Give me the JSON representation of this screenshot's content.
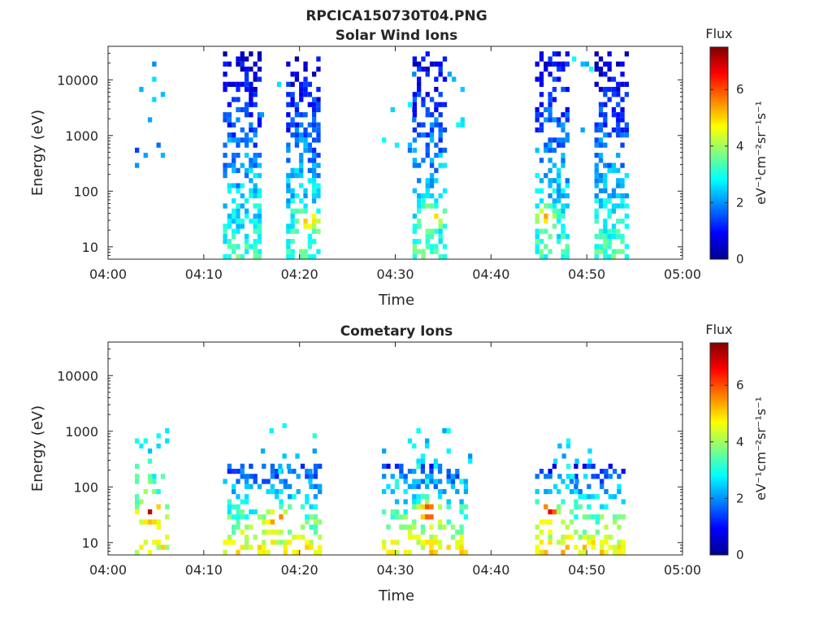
{
  "figure": {
    "title": "RPCICA150730T04.PNG"
  },
  "colormap": [
    "#00008f",
    "#0000ff",
    "#0080ff",
    "#00ffff",
    "#80ff80",
    "#ffff00",
    "#ff8000",
    "#ff0000",
    "#800000"
  ],
  "chart_data": [
    {
      "type": "heatmap",
      "title": "Solar Wind Ions",
      "xlabel": "Time",
      "ylabel": "Energy (eV)",
      "xlim": [
        "04:00",
        "05:00"
      ],
      "xticks": [
        "04:00",
        "04:10",
        "04:20",
        "04:30",
        "04:40",
        "04:50",
        "05:00"
      ],
      "ylim": [
        6,
        40000
      ],
      "yscale": "log",
      "yticks": [
        "10",
        "100",
        "1000",
        "10000"
      ],
      "colorbar": {
        "title": "Flux",
        "range": [
          0,
          7.5
        ],
        "ticks": [
          "0",
          "2",
          "4",
          "6"
        ],
        "label": "eV⁻¹cm⁻²sr⁻¹s⁻¹"
      },
      "bursts": [
        {
          "start_min": 2.8,
          "end_min": 5.8,
          "emin_ev": 280,
          "emax_ev": 22000,
          "density": 0.12,
          "low_flux": 1.8,
          "high_flux": 2.2,
          "hot_min": null,
          "hot_ev": null,
          "hot_flux": null
        },
        {
          "start_min": 12.0,
          "end_min": 16.0,
          "emin_ev": 6,
          "emax_ev": 35000,
          "density": 0.55,
          "low_flux": 3.3,
          "high_flux": 0.5,
          "hot_min": null,
          "hot_ev": null,
          "hot_flux": null
        },
        {
          "start_min": 18.6,
          "end_min": 22.0,
          "emin_ev": 6,
          "emax_ev": 25000,
          "density": 0.6,
          "low_flux": 3.4,
          "high_flux": 0.5,
          "hot_min": 20.8,
          "hot_ev": 30,
          "hot_flux": 5.5
        },
        {
          "start_min": 14.5,
          "end_min": 19.0,
          "emin_ev": 2000,
          "emax_ev": 12000,
          "density": 0.08,
          "low_flux": 2.0,
          "high_flux": 2.5,
          "hot_min": null,
          "hot_ev": null,
          "hot_flux": null
        },
        {
          "start_min": 28.6,
          "end_min": 31.8,
          "emin_ev": 500,
          "emax_ev": 20000,
          "density": 0.1,
          "low_flux": 2.2,
          "high_flux": 2.5,
          "hot_min": null,
          "hot_ev": null,
          "hot_flux": null
        },
        {
          "start_min": 31.8,
          "end_min": 35.2,
          "emin_ev": 6,
          "emax_ev": 35000,
          "density": 0.55,
          "low_flux": 3.3,
          "high_flux": 0.6,
          "hot_min": 33.5,
          "hot_ev": 33,
          "hot_flux": 5.8
        },
        {
          "start_min": 35.0,
          "end_min": 37.8,
          "emin_ev": 1200,
          "emax_ev": 15000,
          "density": 0.1,
          "low_flux": 2.3,
          "high_flux": 2.6,
          "hot_min": null,
          "hot_ev": null,
          "hot_flux": null
        },
        {
          "start_min": 44.6,
          "end_min": 48.0,
          "emin_ev": 6,
          "emax_ev": 35000,
          "density": 0.55,
          "low_flux": 3.3,
          "high_flux": 0.6,
          "hot_min": 45.6,
          "hot_ev": 35,
          "hot_flux": 5.4
        },
        {
          "start_min": 48.0,
          "end_min": 50.8,
          "emin_ev": 800,
          "emax_ev": 30000,
          "density": 0.08,
          "low_flux": 2.3,
          "high_flux": 2.4,
          "hot_min": null,
          "hot_ev": null,
          "hot_flux": null
        },
        {
          "start_min": 50.8,
          "end_min": 54.0,
          "emin_ev": 6,
          "emax_ev": 30000,
          "density": 0.6,
          "low_flux": 3.4,
          "high_flux": 0.5,
          "hot_min": null,
          "hot_ev": null,
          "hot_flux": null
        }
      ]
    },
    {
      "type": "heatmap",
      "title": "Cometary Ions",
      "xlabel": "Time",
      "ylabel": "Energy (eV)",
      "xlim": [
        "04:00",
        "05:00"
      ],
      "xticks": [
        "04:00",
        "04:10",
        "04:20",
        "04:30",
        "04:40",
        "04:50",
        "05:00"
      ],
      "ylim": [
        6,
        40000
      ],
      "yscale": "log",
      "yticks": [
        "10",
        "100",
        "1000",
        "10000"
      ],
      "colorbar": {
        "title": "Flux",
        "range": [
          0,
          7.5
        ],
        "ticks": [
          "0",
          "2",
          "4",
          "6"
        ],
        "label": "eV⁻¹cm⁻²sr⁻¹s⁻¹"
      },
      "bursts": [
        {
          "start_min": 2.8,
          "end_min": 6.0,
          "emin_ev": 6,
          "emax_ev": 1100,
          "density": 0.4,
          "low_flux": 4.6,
          "high_flux": 2.3,
          "hot_min": 4.2,
          "hot_ev": 35,
          "hot_flux": 7.0
        },
        {
          "start_min": 12.0,
          "end_min": 22.0,
          "emin_ev": 6,
          "emax_ev": 250,
          "density": 0.4,
          "low_flux": 4.8,
          "high_flux": 1.3,
          "hot_min": 17.5,
          "hot_ev": 25,
          "hot_flux": 6.3
        },
        {
          "start_min": 15.5,
          "end_min": 21.5,
          "emin_ev": 120,
          "emax_ev": 1500,
          "density": 0.1,
          "low_flux": 2.6,
          "high_flux": 2.6,
          "hot_min": null,
          "hot_ev": null,
          "hot_flux": null
        },
        {
          "start_min": 28.6,
          "end_min": 37.5,
          "emin_ev": 6,
          "emax_ev": 250,
          "density": 0.42,
          "low_flux": 4.9,
          "high_flux": 1.3,
          "hot_min": 33.3,
          "hot_ev": 36,
          "hot_flux": 6.8
        },
        {
          "start_min": 28.6,
          "end_min": 37.8,
          "emin_ev": 100,
          "emax_ev": 1200,
          "density": 0.12,
          "low_flux": 2.6,
          "high_flux": 2.6,
          "hot_min": null,
          "hot_ev": null,
          "hot_flux": null
        },
        {
          "start_min": 44.6,
          "end_min": 54.0,
          "emin_ev": 6,
          "emax_ev": 250,
          "density": 0.42,
          "low_flux": 5.0,
          "high_flux": 1.2,
          "hot_min": 45.8,
          "hot_ev": 35,
          "hot_flux": 6.8
        },
        {
          "start_min": 46.5,
          "end_min": 50.5,
          "emin_ev": 100,
          "emax_ev": 1400,
          "density": 0.12,
          "low_flux": 2.6,
          "high_flux": 2.6,
          "hot_min": null,
          "hot_ev": null,
          "hot_flux": null
        }
      ]
    }
  ]
}
